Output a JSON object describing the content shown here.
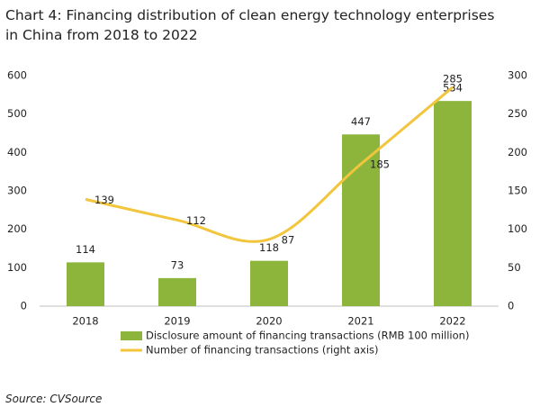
{
  "chart_data": {
    "type": "bar",
    "title": "Chart 4: Financing distribution of clean energy technology enterprises in China from 2018 to 2022",
    "categories": [
      "2018",
      "2019",
      "2020",
      "2021",
      "2022"
    ],
    "series": [
      {
        "name": "Disclosure amount of financing transactions (RMB 100 million)",
        "type": "bar",
        "color": "#8db53c",
        "values": [
          114,
          73,
          118,
          447,
          534
        ]
      },
      {
        "name": "Number of financing transactions (right axis)",
        "type": "line",
        "axis": "y2",
        "color": "#f2c53d",
        "values": [
          139,
          112,
          87,
          185,
          285
        ]
      }
    ],
    "ylim": [
      0,
      600
    ],
    "yticks": [
      0,
      100,
      200,
      300,
      400,
      500,
      600
    ],
    "y2lim": [
      0,
      300
    ],
    "y2ticks": [
      0,
      50,
      100,
      150,
      200,
      250,
      300
    ],
    "grid": false,
    "source": "Source: CVSource"
  }
}
